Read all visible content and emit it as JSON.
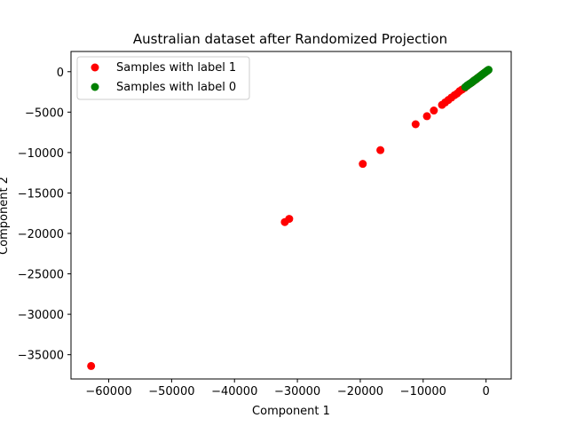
{
  "chart_data": {
    "type": "scatter",
    "title": "Australian dataset after Randomized Projection",
    "xlabel": "Component 1",
    "ylabel": "Component 2",
    "xlim": [
      -66000,
      4000
    ],
    "ylim": [
      -38000,
      2500
    ],
    "xticks": [
      -60000,
      -50000,
      -40000,
      -30000,
      -20000,
      -10000,
      0
    ],
    "yticks": [
      0,
      -5000,
      -10000,
      -15000,
      -20000,
      -25000,
      -30000,
      -35000
    ],
    "xtick_labels": [
      "−60000",
      "−50000",
      "−40000",
      "−30000",
      "−20000",
      "−10000",
      "0"
    ],
    "ytick_labels": [
      "0",
      "−5000",
      "−10000",
      "−15000",
      "−20000",
      "−25000",
      "−30000",
      "−35000"
    ],
    "grid": false,
    "legend": "top-left",
    "series": [
      {
        "name": "Samples with label 1",
        "color": "#ff0000",
        "points": [
          [
            -62800,
            -36400
          ],
          [
            -32000,
            -18600
          ],
          [
            -31300,
            -18200
          ],
          [
            -19600,
            -11400
          ],
          [
            -16800,
            -9700
          ],
          [
            -11200,
            -6500
          ],
          [
            -9400,
            -5500
          ],
          [
            -8300,
            -4800
          ],
          [
            -7000,
            -4100
          ],
          [
            -6500,
            -3800
          ],
          [
            -6000,
            -3500
          ],
          [
            -5500,
            -3200
          ],
          [
            -5000,
            -2900
          ],
          [
            -4600,
            -2700
          ],
          [
            -4200,
            -2400
          ],
          [
            -3800,
            -2200
          ],
          [
            -3400,
            -2000
          ],
          [
            -3000,
            -1750
          ],
          [
            -2600,
            -1500
          ],
          [
            -2200,
            -1300
          ],
          [
            -1900,
            -1100
          ],
          [
            -1600,
            -950
          ],
          [
            -1300,
            -750
          ],
          [
            -1000,
            -600
          ],
          [
            -700,
            -400
          ],
          [
            -400,
            -230
          ],
          [
            -150,
            -80
          ],
          [
            100,
            60
          ],
          [
            300,
            170
          ]
        ]
      },
      {
        "name": "Samples with label 0",
        "color": "#008000",
        "points": [
          [
            -3300,
            -1900
          ],
          [
            -3000,
            -1700
          ],
          [
            -2700,
            -1550
          ],
          [
            -2400,
            -1400
          ],
          [
            -2150,
            -1250
          ],
          [
            -1900,
            -1100
          ],
          [
            -1650,
            -960
          ],
          [
            -1400,
            -820
          ],
          [
            -1200,
            -700
          ],
          [
            -1000,
            -580
          ],
          [
            -800,
            -470
          ],
          [
            -600,
            -350
          ],
          [
            -450,
            -260
          ],
          [
            -300,
            -170
          ],
          [
            -150,
            -90
          ],
          [
            0,
            0
          ],
          [
            100,
            60
          ],
          [
            200,
            120
          ],
          [
            300,
            180
          ],
          [
            400,
            230
          ]
        ]
      }
    ]
  }
}
